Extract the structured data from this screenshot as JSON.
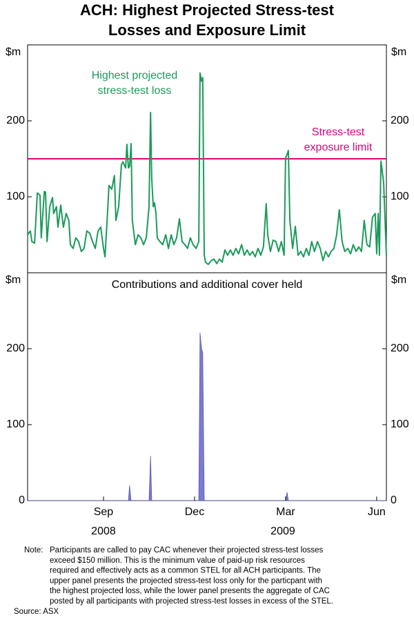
{
  "title": [
    "ACH: Highest Projected Stress-test",
    "Losses and Exposure Limit"
  ],
  "note_label": "Note:",
  "note_lines": [
    "Participants are called to pay CAC whenever their projected stress-test losses",
    "exceed $150 million. This is the minimum value of paid-up risk resources",
    "required and effectively acts as a common STEL for all ACH participants. The",
    "upper panel presents the projected stress-test loss only for the particpant with",
    "the highest projected loss, while the lower panel presents the aggregate of CAC",
    "posted by all participants with projected stress-test losses in excess of the STEL."
  ],
  "source": "Source: ASX",
  "x_axis": {
    "xlim": [
      0,
      11.82
    ],
    "xticks": [
      {
        "value": 2.5,
        "label": "Sep"
      },
      {
        "value": 5.5,
        "label": "Dec"
      },
      {
        "value": 8.5,
        "label": "Mar"
      },
      {
        "value": 11.5,
        "label": "Jun"
      }
    ],
    "year_labels": [
      {
        "value": 2.5,
        "label": "2008"
      },
      {
        "value": 8.41,
        "label": "2009"
      }
    ]
  },
  "chart_data": [
    {
      "type": "line",
      "y_unit": "$m",
      "ylim": [
        0,
        300
      ],
      "yticks": [
        100,
        200
      ],
      "annotation": {
        "lines": [
          "Highest projected",
          "stress-test loss"
        ],
        "color": "#1a9a5a"
      },
      "reference_line": {
        "value": 150,
        "color": "#e0007a",
        "lines": [
          "Stress-test",
          "exposure limit"
        ]
      },
      "series": [
        {
          "color": "#1a9a5a",
          "x": [
            0,
            0.09,
            0.14,
            0.23,
            0.32,
            0.41,
            0.45,
            0.55,
            0.59,
            0.64,
            0.73,
            0.82,
            0.86,
            0.95,
            1.0,
            1.09,
            1.18,
            1.27,
            1.36,
            1.41,
            1.5,
            1.59,
            1.68,
            1.77,
            1.86,
            1.95,
            2.05,
            2.14,
            2.23,
            2.32,
            2.41,
            2.5,
            2.55,
            2.64,
            2.68,
            2.77,
            2.86,
            2.91,
            3.0,
            3.09,
            3.14,
            3.23,
            3.27,
            3.32,
            3.36,
            3.41,
            3.45,
            3.55,
            3.64,
            3.73,
            3.82,
            3.91,
            4.0,
            4.05,
            4.09,
            4.14,
            4.18,
            4.23,
            4.27,
            4.36,
            4.45,
            4.55,
            4.64,
            4.73,
            4.82,
            4.91,
            5.0,
            5.09,
            5.18,
            5.27,
            5.36,
            5.45,
            5.55,
            5.64,
            5.68,
            5.73,
            5.77,
            5.82,
            5.86,
            5.95,
            6.05,
            6.14,
            6.23,
            6.32,
            6.41,
            6.5,
            6.59,
            6.68,
            6.77,
            6.86,
            6.95,
            7.05,
            7.14,
            7.23,
            7.32,
            7.41,
            7.5,
            7.59,
            7.68,
            7.77,
            7.86,
            7.91,
            8.0,
            8.09,
            8.18,
            8.27,
            8.36,
            8.45,
            8.5,
            8.55,
            8.59,
            8.64,
            8.73,
            8.82,
            8.91,
            9.0,
            9.09,
            9.18,
            9.27,
            9.36,
            9.45,
            9.55,
            9.64,
            9.73,
            9.82,
            9.91,
            10.0,
            10.09,
            10.18,
            10.27,
            10.36,
            10.45,
            10.55,
            10.64,
            10.73,
            10.82,
            10.91,
            11.0,
            11.09,
            11.18,
            11.27,
            11.36,
            11.45,
            11.5,
            11.55,
            11.59,
            11.64,
            11.73,
            11.82
          ],
          "values": [
            50,
            55,
            41,
            39,
            105,
            102,
            46,
            107,
            106,
            41,
            87,
            99,
            78,
            87,
            60,
            89,
            60,
            78,
            69,
            37,
            32,
            46,
            41,
            28,
            32,
            55,
            52,
            41,
            32,
            55,
            60,
            32,
            21,
            83,
            115,
            110,
            128,
            69,
            87,
            142,
            146,
            138,
            169,
            138,
            140,
            170,
            69,
            37,
            50,
            46,
            37,
            46,
            87,
            211,
            124,
            87,
            92,
            78,
            46,
            41,
            37,
            50,
            32,
            50,
            37,
            46,
            71,
            41,
            37,
            32,
            46,
            37,
            32,
            41,
            263,
            252,
            257,
            23,
            14,
            11,
            16,
            18,
            12,
            18,
            14,
            30,
            23,
            30,
            23,
            32,
            25,
            37,
            23,
            30,
            23,
            28,
            21,
            32,
            23,
            34,
            91,
            50,
            28,
            43,
            41,
            28,
            41,
            23,
            151,
            156,
            161,
            69,
            32,
            61,
            23,
            28,
            21,
            32,
            23,
            41,
            28,
            41,
            32,
            16,
            28,
            21,
            28,
            32,
            50,
            83,
            41,
            28,
            32,
            25,
            37,
            28,
            34,
            28,
            69,
            37,
            34,
            73,
            78,
            25,
            78,
            23,
            147,
            119,
            23
          ]
        }
      ]
    },
    {
      "type": "area",
      "subtitle": "Contributions and additional cover held",
      "y_unit": "$m",
      "ylim": [
        0,
        300
      ],
      "yticks": [
        0,
        100,
        200
      ],
      "series": [
        {
          "color": "#7b7bd1",
          "x": [
            0,
            3.32,
            3.36,
            3.41,
            4.0,
            4.05,
            4.09,
            5.64,
            5.68,
            5.73,
            5.77,
            5.82,
            8.5,
            8.55,
            8.59,
            11.82
          ],
          "values": [
            0,
            0,
            20,
            0,
            0,
            59,
            0,
            0,
            221,
            200,
            195,
            0,
            0,
            11,
            0,
            0
          ]
        }
      ]
    }
  ]
}
